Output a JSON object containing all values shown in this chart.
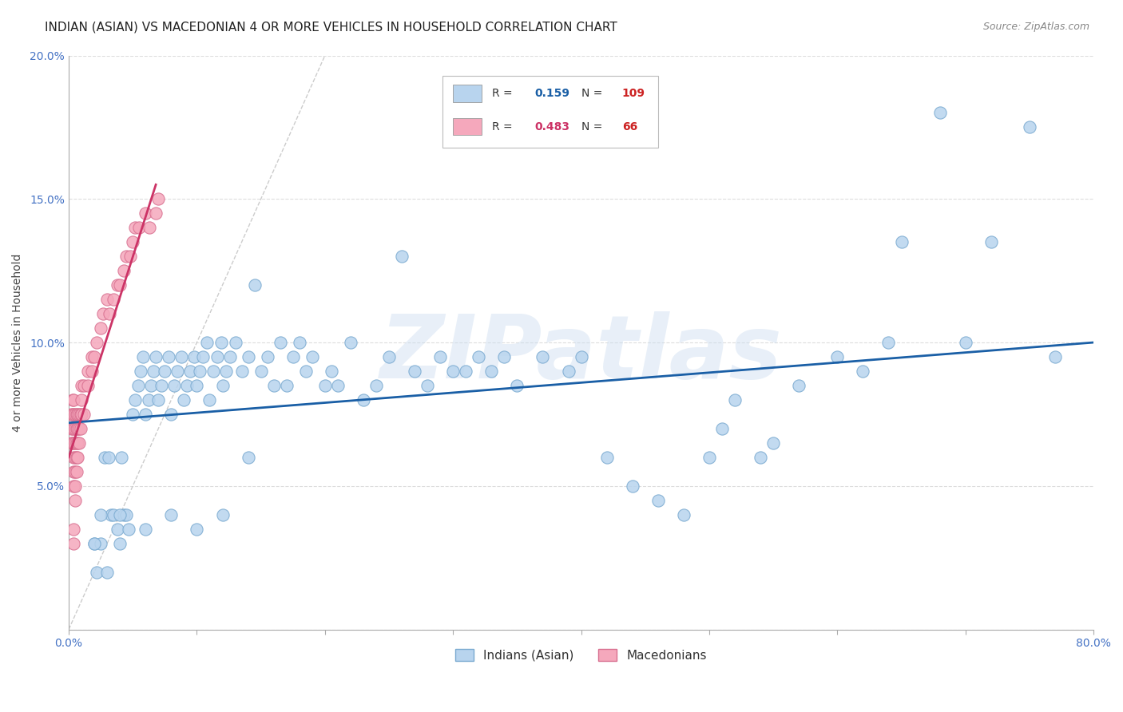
{
  "title": "INDIAN (ASIAN) VS MACEDONIAN 4 OR MORE VEHICLES IN HOUSEHOLD CORRELATION CHART",
  "source": "Source: ZipAtlas.com",
  "ylabel": "4 or more Vehicles in Household",
  "xlim": [
    0.0,
    0.8
  ],
  "ylim": [
    0.0,
    0.2
  ],
  "xtick_vals": [
    0.0,
    0.1,
    0.2,
    0.3,
    0.4,
    0.5,
    0.6,
    0.7,
    0.8
  ],
  "xticklabels": [
    "0.0%",
    "",
    "",
    "",
    "",
    "",
    "",
    "",
    "80.0%"
  ],
  "ytick_vals": [
    0.0,
    0.05,
    0.1,
    0.15,
    0.2
  ],
  "yticklabels": [
    "",
    "5.0%",
    "10.0%",
    "15.0%",
    "20.0%"
  ],
  "watermark": "ZIPatlas",
  "legend_items": [
    {
      "label": "Indians (Asian)",
      "color": "#b8d4ee",
      "R": "0.159",
      "N": "109",
      "R_color": "#1a5fa6",
      "N_color": "#cc2222"
    },
    {
      "label": "Macedonians",
      "color": "#f5a8bc",
      "R": "0.483",
      "N": "66",
      "R_color": "#cc3366",
      "N_color": "#cc2222"
    }
  ],
  "blue_scatter_x": [
    0.02,
    0.022,
    0.025,
    0.028,
    0.03,
    0.031,
    0.033,
    0.035,
    0.038,
    0.04,
    0.041,
    0.043,
    0.045,
    0.047,
    0.05,
    0.052,
    0.054,
    0.056,
    0.058,
    0.06,
    0.062,
    0.064,
    0.066,
    0.068,
    0.07,
    0.072,
    0.075,
    0.078,
    0.08,
    0.082,
    0.085,
    0.088,
    0.09,
    0.092,
    0.095,
    0.098,
    0.1,
    0.102,
    0.105,
    0.108,
    0.11,
    0.113,
    0.116,
    0.119,
    0.12,
    0.123,
    0.126,
    0.13,
    0.135,
    0.14,
    0.145,
    0.15,
    0.155,
    0.16,
    0.165,
    0.17,
    0.175,
    0.18,
    0.185,
    0.19,
    0.2,
    0.205,
    0.21,
    0.22,
    0.23,
    0.24,
    0.25,
    0.26,
    0.27,
    0.28,
    0.29,
    0.3,
    0.31,
    0.32,
    0.33,
    0.34,
    0.35,
    0.37,
    0.39,
    0.4,
    0.42,
    0.44,
    0.46,
    0.48,
    0.5,
    0.51,
    0.52,
    0.54,
    0.55,
    0.57,
    0.6,
    0.62,
    0.64,
    0.65,
    0.68,
    0.7,
    0.72,
    0.75,
    0.77,
    0.04,
    0.06,
    0.08,
    0.1,
    0.12,
    0.14,
    0.02,
    0.025
  ],
  "blue_scatter_y": [
    0.03,
    0.02,
    0.03,
    0.06,
    0.02,
    0.06,
    0.04,
    0.04,
    0.035,
    0.03,
    0.06,
    0.04,
    0.04,
    0.035,
    0.075,
    0.08,
    0.085,
    0.09,
    0.095,
    0.075,
    0.08,
    0.085,
    0.09,
    0.095,
    0.08,
    0.085,
    0.09,
    0.095,
    0.075,
    0.085,
    0.09,
    0.095,
    0.08,
    0.085,
    0.09,
    0.095,
    0.085,
    0.09,
    0.095,
    0.1,
    0.08,
    0.09,
    0.095,
    0.1,
    0.085,
    0.09,
    0.095,
    0.1,
    0.09,
    0.095,
    0.12,
    0.09,
    0.095,
    0.085,
    0.1,
    0.085,
    0.095,
    0.1,
    0.09,
    0.095,
    0.085,
    0.09,
    0.085,
    0.1,
    0.08,
    0.085,
    0.095,
    0.13,
    0.09,
    0.085,
    0.095,
    0.09,
    0.09,
    0.095,
    0.09,
    0.095,
    0.085,
    0.095,
    0.09,
    0.095,
    0.06,
    0.05,
    0.045,
    0.04,
    0.06,
    0.07,
    0.08,
    0.06,
    0.065,
    0.085,
    0.095,
    0.09,
    0.1,
    0.135,
    0.18,
    0.1,
    0.135,
    0.175,
    0.095,
    0.04,
    0.035,
    0.04,
    0.035,
    0.04,
    0.06,
    0.03,
    0.04
  ],
  "pink_scatter_x": [
    0.002,
    0.002,
    0.002,
    0.003,
    0.003,
    0.003,
    0.003,
    0.004,
    0.004,
    0.004,
    0.004,
    0.004,
    0.004,
    0.004,
    0.005,
    0.005,
    0.005,
    0.005,
    0.005,
    0.005,
    0.006,
    0.006,
    0.006,
    0.006,
    0.006,
    0.007,
    0.007,
    0.007,
    0.007,
    0.008,
    0.008,
    0.008,
    0.009,
    0.009,
    0.01,
    0.01,
    0.01,
    0.012,
    0.012,
    0.015,
    0.015,
    0.018,
    0.018,
    0.02,
    0.022,
    0.025,
    0.027,
    0.03,
    0.032,
    0.035,
    0.038,
    0.04,
    0.043,
    0.045,
    0.048,
    0.05,
    0.052,
    0.055,
    0.06,
    0.063,
    0.068,
    0.07,
    0.004,
    0.004,
    0.005
  ],
  "pink_scatter_y": [
    0.065,
    0.07,
    0.075,
    0.065,
    0.07,
    0.075,
    0.08,
    0.05,
    0.055,
    0.06,
    0.065,
    0.07,
    0.075,
    0.08,
    0.05,
    0.055,
    0.06,
    0.065,
    0.07,
    0.075,
    0.055,
    0.06,
    0.065,
    0.07,
    0.075,
    0.06,
    0.065,
    0.07,
    0.075,
    0.065,
    0.07,
    0.075,
    0.07,
    0.075,
    0.075,
    0.08,
    0.085,
    0.075,
    0.085,
    0.085,
    0.09,
    0.09,
    0.095,
    0.095,
    0.1,
    0.105,
    0.11,
    0.115,
    0.11,
    0.115,
    0.12,
    0.12,
    0.125,
    0.13,
    0.13,
    0.135,
    0.14,
    0.14,
    0.145,
    0.14,
    0.145,
    0.15,
    0.03,
    0.035,
    0.045
  ],
  "blue_line_x": [
    0.0,
    0.8
  ],
  "blue_line_y": [
    0.072,
    0.1
  ],
  "pink_line_x": [
    0.0,
    0.068
  ],
  "pink_line_y": [
    0.06,
    0.155
  ],
  "diag_line_x": [
    0.0,
    0.2
  ],
  "diag_line_y": [
    0.0,
    0.2
  ],
  "blue_line_color": "#1a5fa6",
  "pink_line_color": "#cc3366",
  "diag_line_color": "#cccccc",
  "scatter_blue_color": "#b8d4ee",
  "scatter_pink_color": "#f5a8bc",
  "scatter_edge_blue": "#7aaad0",
  "scatter_edge_pink": "#d87090",
  "title_fontsize": 11,
  "axis_label_fontsize": 10,
  "tick_fontsize": 10,
  "source_fontsize": 9,
  "watermark_fontsize": 80,
  "watermark_color": "#ccddf0",
  "watermark_alpha": 0.45
}
